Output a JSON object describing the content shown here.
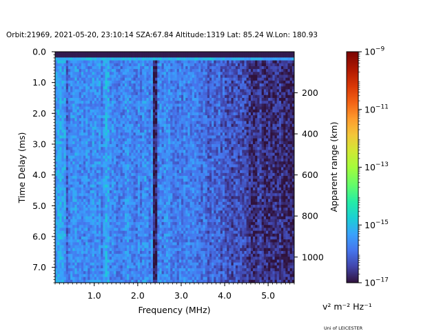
{
  "chart_data": {
    "type": "heatmap",
    "title": "Orbit:21969, 2021-05-20, 23:10:14 SZA:67.84 Altitude:1319 Lat: 85.24 W.Lon: 180.93",
    "xlabel": "Frequency (MHz)",
    "ylabel": "Time Delay (ms)",
    "y2label": "Apparent range (km)",
    "xlim": [
      0.1,
      5.6
    ],
    "ylim": [
      7.5,
      0.0
    ],
    "y2lim": [
      0,
      1125
    ],
    "x_ticks": [
      1.0,
      2.0,
      3.0,
      4.0,
      5.0
    ],
    "x_tick_labels": [
      "1.0",
      "2.0",
      "3.0",
      "4.0",
      "5.0"
    ],
    "y_ticks": [
      0.0,
      1.0,
      2.0,
      3.0,
      4.0,
      5.0,
      6.0,
      7.0
    ],
    "y_tick_labels": [
      "0.0",
      "1.0",
      "2.0",
      "3.0",
      "4.0",
      "5.0",
      "6.0",
      "7.0"
    ],
    "y2_ticks": [
      200,
      400,
      600,
      800,
      1000
    ],
    "y2_tick_labels": [
      "200",
      "400",
      "600",
      "800",
      "1000"
    ],
    "colorbar": {
      "scale": "log",
      "cmap": "turbo",
      "range": [
        1e-17,
        1e-09
      ],
      "tick_exponents": [
        -9,
        -11,
        -13,
        -15,
        -17
      ],
      "tick_base": "10",
      "units_label": "v² m⁻² Hz⁻¹"
    },
    "grid": {
      "n_freq_bins": 110,
      "n_delay_bins": 80,
      "description_values": "log10 spectral density per cell"
    },
    "features": [
      {
        "name": "ionospheric-echo-top-band",
        "delay_ms": 0.1,
        "freq_range_mhz": [
          0.1,
          5.6
        ],
        "log10_value": -15.0
      },
      {
        "name": "dark-line",
        "freq_mhz": 2.4,
        "log10_value": -16.7
      },
      {
        "name": "bright-line",
        "freq_mhz": 1.3,
        "log10_value": -15.3
      }
    ]
  },
  "footer": {
    "institution": "Uni of LEICESTER"
  }
}
